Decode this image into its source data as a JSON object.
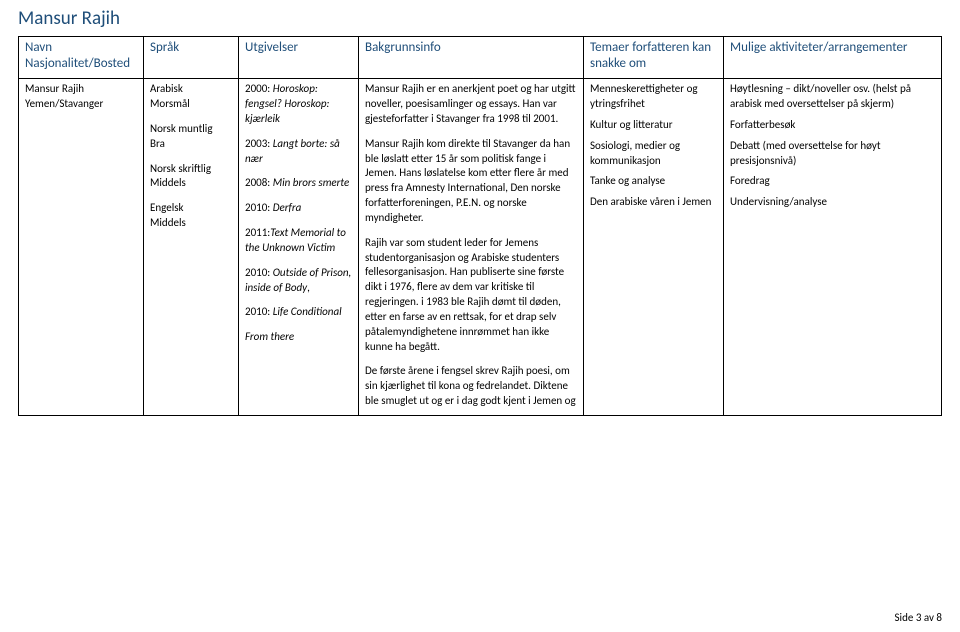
{
  "title": "Mansur Rajih",
  "columns": {
    "navn": "Navn\nNasjonalitet/Bosted",
    "sprak": "Språk",
    "utgiv": "Utgivelser",
    "bak": "Bakgrunnsinfo",
    "tema": "Temaer forfatteren kan snakke om",
    "mulige": "Mulige aktiviteter/arrangementer"
  },
  "row": {
    "navn_line1": "Mansur Rajih",
    "navn_line2": "Yemen/Stavanger",
    "sprak": {
      "l1a": "Arabisk",
      "l1b": "Morsmål",
      "l2a": "Norsk muntlig",
      "l2b": "Bra",
      "l3a": "Norsk skriftlig",
      "l3b": "Middels",
      "l4a": "Engelsk",
      "l4b": "Middels"
    },
    "utgiv": {
      "u1a": "2000: ",
      "u1b": "Horoskop: fengsel? Horoskop: kjærleik",
      "u2a": "2003: ",
      "u2b": "Langt borte: så nær",
      "u3a": "2008: ",
      "u3b": "Min brors smerte",
      "u4a": "2010: ",
      "u4b": "Derfra",
      "u5a": "2011:",
      "u5b": "Text Memorial to the Unknown Victim",
      "u6a": "2010: ",
      "u6b": "Outside of Prison, inside of Body",
      "u6c": ",",
      "u7a": "2010: ",
      "u7b": "Life Conditional",
      "u8": "From there"
    },
    "bak": {
      "p1": "Mansur Rajih er en anerkjent poet og har utgitt noveller, poesisamlinger og essays. Han var gjesteforfatter i Stavanger fra 1998 til 2001.",
      "p2": "Mansur Rajih kom direkte til Stavanger da han ble løslatt etter 15 år som politisk fange i Jemen. Hans løslatelse kom etter flere år med press fra Amnesty International, Den norske forfatterforeningen, P.E.N. og norske myndigheter.",
      "p3": "Rajih var som student leder for Jemens studentorganisasjon og Arabiske studenters fellesorganisasjon. Han publiserte sine første dikt i 1976, flere av dem var kritiske til regjeringen. i 1983 ble Rajih dømt til døden, etter en farse av en rettsak, for et drap selv påtalemyndighetene innrømmet han ikke kunne ha begått.",
      "p4": "De første årene i fengsel skrev Rajih poesi, om sin kjærlighet til kona og fedrelandet. Diktene ble smuglet ut og er i dag godt kjent i Jemen og"
    },
    "tema": {
      "t1": "Menneskerettigheter og ytringsfrihet",
      "t2": "Kultur og litteratur",
      "t3": "Sosiologi, medier og kommunikasjon",
      "t4": "Tanke og analyse",
      "t5": "Den arabiske våren i Jemen"
    },
    "mulige": {
      "m1": "Høytlesning – dikt/noveller osv. (helst på arabisk med oversettelser på skjerm)",
      "m2": "Forfatterbesøk",
      "m3": "Debatt (med oversettelse for høyt presisjonsnivå)",
      "m4": "Foredrag",
      "m5": "Undervisning/analyse"
    }
  },
  "footer": "Side 3 av 8"
}
